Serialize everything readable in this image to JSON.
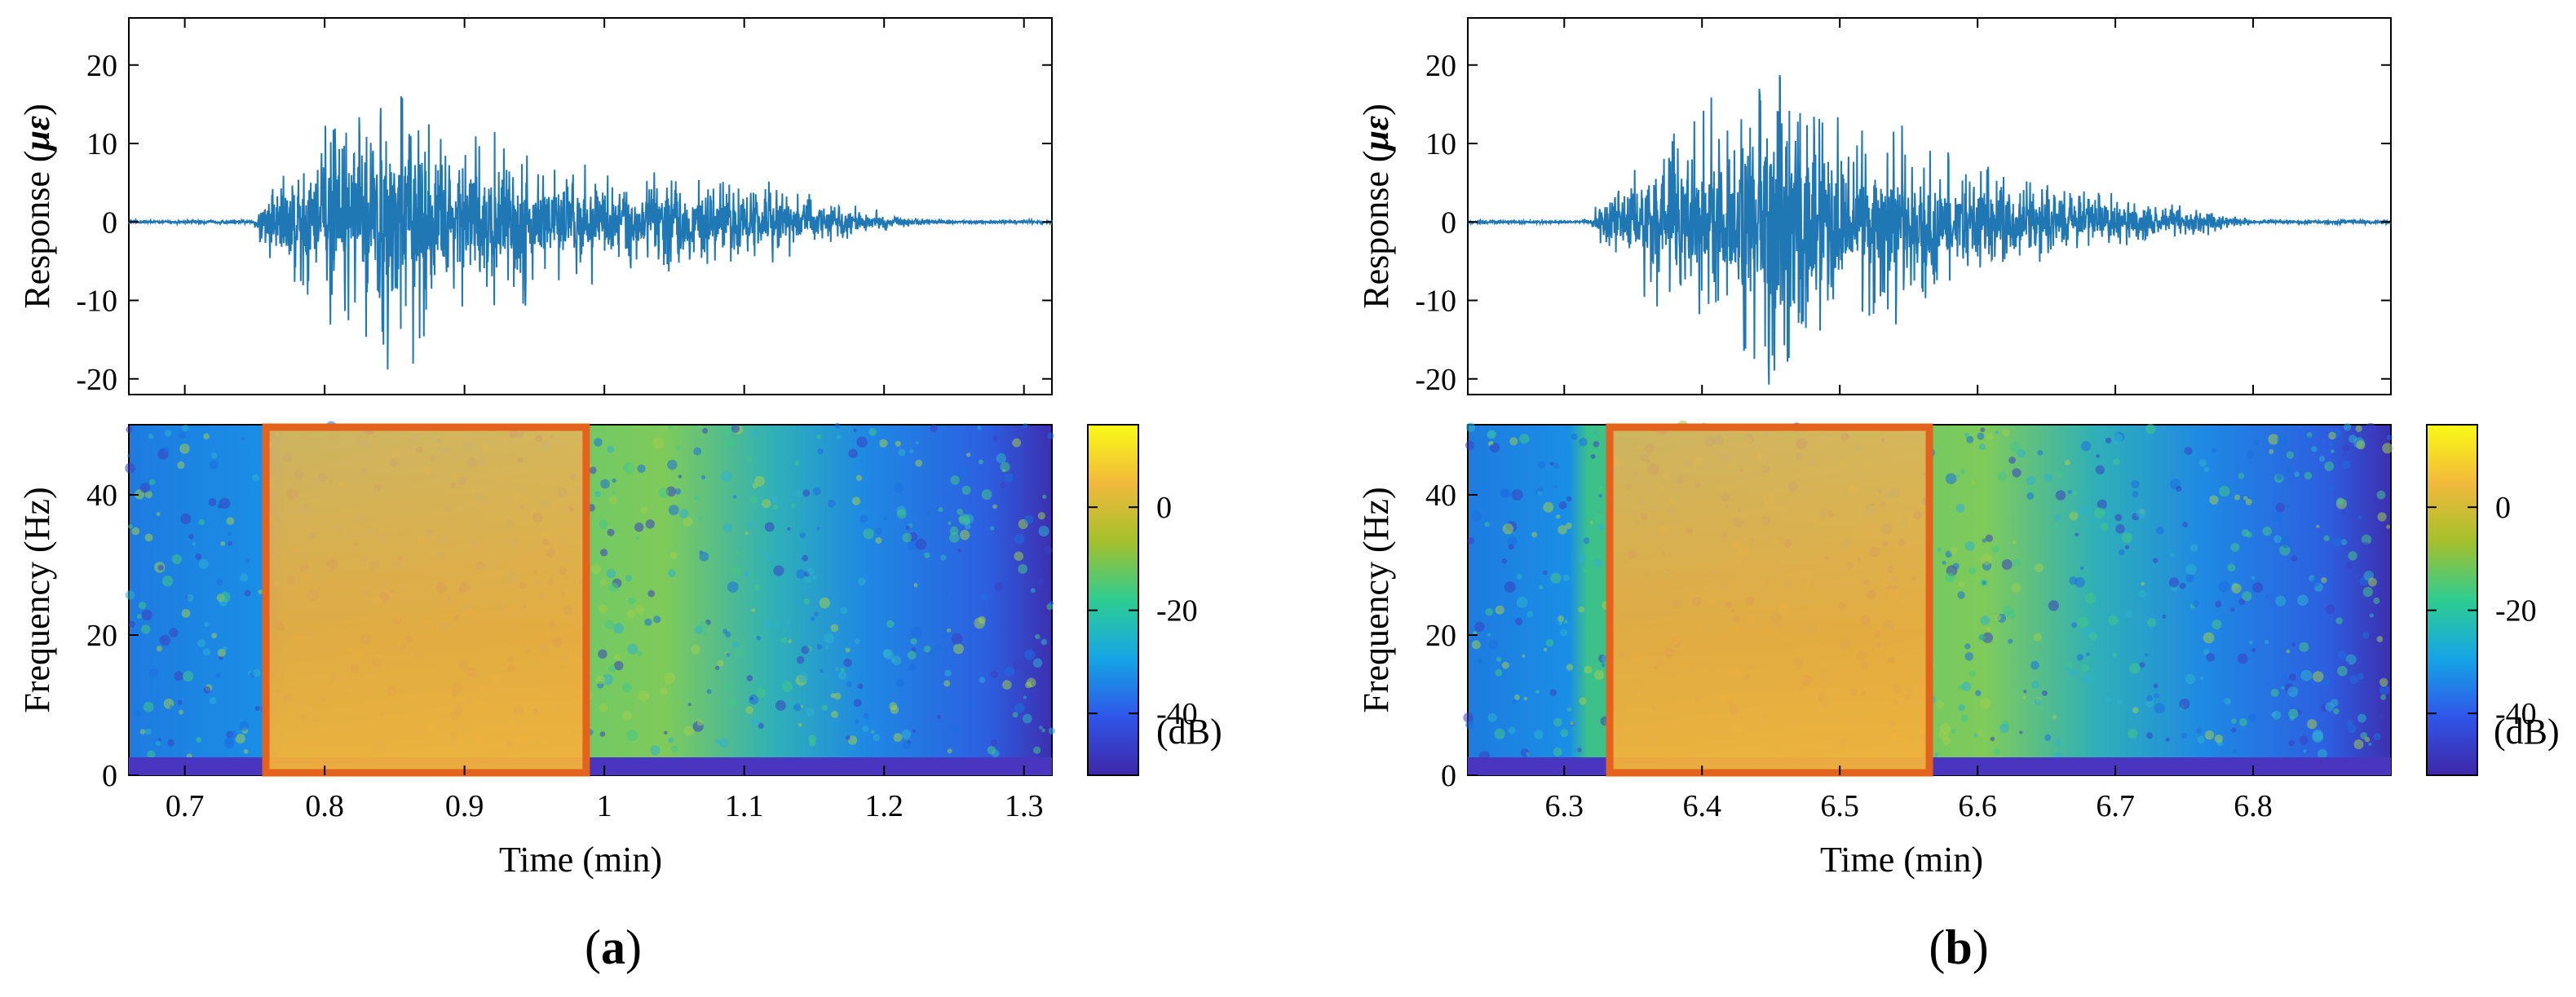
{
  "figure": {
    "panel_a": {
      "open": "(",
      "letter": "a",
      "close": ")"
    },
    "panel_b": {
      "open": "(",
      "letter": "b",
      "close": ")"
    }
  },
  "colors": {
    "signal": "#1f77b4",
    "ambient": "#808080",
    "highlight_box": "#e3621c",
    "colormap": [
      "#3e26a8",
      "#2f56e9",
      "#14a5e6",
      "#2ecd92",
      "#a4c02b",
      "#f2b93c",
      "#f9fa14"
    ]
  },
  "chart_data": [
    {
      "id": "a",
      "type": "line",
      "subplot": "response",
      "ylabel": {
        "pre": "Response (",
        "mu": "μ",
        "eps": "ε",
        "post": ")"
      },
      "xlim": [
        0.66,
        1.32
      ],
      "ylim": [
        -22,
        26
      ],
      "yticks": [
        -20,
        -10,
        0,
        10,
        20
      ],
      "xticks": [
        0.7,
        0.8,
        0.9,
        1.0,
        1.1,
        1.2,
        1.3
      ],
      "series": [
        {
          "segment": "ambient",
          "x_range": [
            0.66,
            0.75
          ],
          "envelope": [
            0.3
          ]
        },
        {
          "segment": "event",
          "x": [
            0.75,
            0.77,
            0.8,
            0.83,
            0.85,
            0.88,
            0.91,
            0.94,
            0.97,
            1.0,
            1.04,
            1.08,
            1.12,
            1.15,
            1.18,
            1.21,
            1.24
          ],
          "envelope": [
            3,
            10,
            14,
            17,
            24.5,
            15,
            12,
            13,
            9,
            8,
            8,
            6,
            6.5,
            4,
            2.5,
            1,
            0.3
          ]
        }
      ]
    },
    {
      "id": "a",
      "type": "heatmap",
      "subplot": "spectrogram",
      "xlabel": "Time (min)",
      "ylabel": "Frequency (Hz)",
      "xlim": [
        0.66,
        1.32
      ],
      "ylim": [
        0,
        50
      ],
      "xtick_labels": [
        "0.7",
        "0.8",
        "0.9",
        "1",
        "1.1",
        "1.2",
        "1.3"
      ],
      "yticks": [
        0,
        20,
        40
      ],
      "colorbar": {
        "ticks": [
          0,
          -20,
          -40
        ],
        "unit": "(dB)",
        "range": [
          -52,
          16
        ]
      },
      "highlight_x": [
        0.758,
        0.987
      ]
    },
    {
      "id": "b",
      "type": "line",
      "subplot": "response",
      "ylabel": {
        "pre": "Response (",
        "mu": "μ",
        "eps": "ε",
        "post": ")"
      },
      "xlim": [
        6.23,
        6.9
      ],
      "ylim": [
        -22,
        26
      ],
      "yticks": [
        -20,
        -10,
        0,
        10,
        20
      ],
      "xticks": [
        6.3,
        6.4,
        6.5,
        6.6,
        6.7,
        6.8
      ],
      "series": [
        {
          "segment": "ambient",
          "x_range": [
            6.23,
            6.32
          ],
          "envelope": [
            0.3
          ]
        },
        {
          "segment": "event",
          "x": [
            6.32,
            6.35,
            6.38,
            6.41,
            6.44,
            6.46,
            6.49,
            6.52,
            6.55,
            6.58,
            6.62,
            6.66,
            6.7,
            6.74,
            6.78,
            6.8
          ],
          "envelope": [
            2,
            9,
            15,
            18,
            22,
            26,
            17,
            15,
            13,
            11,
            8,
            6,
            4,
            3,
            1.5,
            0.3
          ]
        }
      ]
    },
    {
      "id": "b",
      "type": "heatmap",
      "subplot": "spectrogram",
      "xlabel": "Time (min)",
      "ylabel": "Frequency (Hz)",
      "xlim": [
        6.23,
        6.9
      ],
      "ylim": [
        0,
        50
      ],
      "xtick_labels": [
        "6.3",
        "6.4",
        "6.5",
        "6.6",
        "6.7",
        "6.8"
      ],
      "yticks": [
        0,
        20,
        40
      ],
      "colorbar": {
        "ticks": [
          0,
          -20,
          -40
        ],
        "unit": "(dB)",
        "range": [
          -52,
          16
        ]
      },
      "highlight_x": [
        6.333,
        6.565
      ]
    }
  ]
}
